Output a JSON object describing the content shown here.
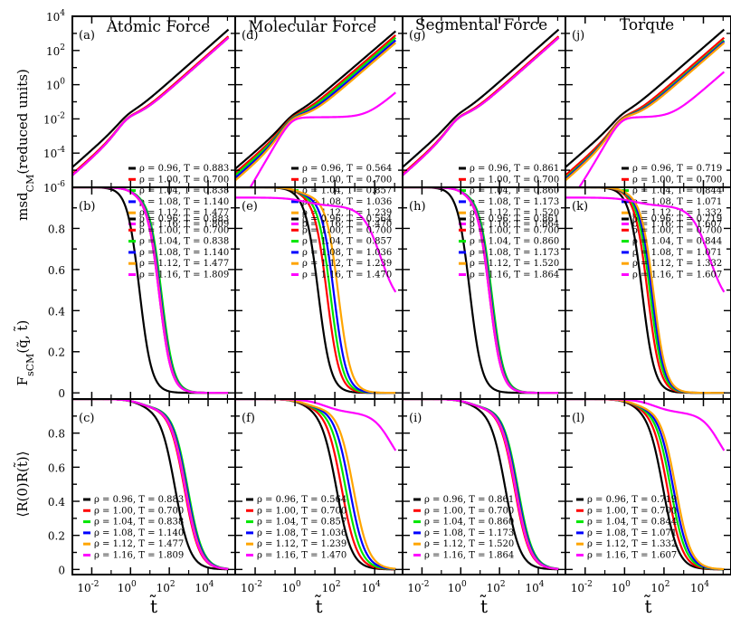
{
  "colors": {
    "frame": "#000000",
    "series": [
      "#000000",
      "#ff0000",
      "#00e600",
      "#0000ff",
      "#ffa500",
      "#ff00ff"
    ]
  },
  "columns": [
    {
      "title": "Atomic Force",
      "panels": [
        "(a)",
        "(b)",
        "(c)"
      ],
      "temperatures": [
        "0.883",
        "0.700",
        "0.838",
        "1.140",
        "1.477",
        "1.809"
      ]
    },
    {
      "title": "Molecular Force",
      "panels": [
        "(d)",
        "(e)",
        "(f)"
      ],
      "temperatures": [
        "0.564",
        "0.700",
        "0.857",
        "1.036",
        "1.239",
        "1.470"
      ]
    },
    {
      "title": "Segmental Force",
      "panels": [
        "(g)",
        "(h)",
        "(i)"
      ],
      "temperatures": [
        "0.861",
        "0.700",
        "0.860",
        "1.173",
        "1.520",
        "1.864"
      ]
    },
    {
      "title": "Torque",
      "panels": [
        "(j)",
        "(k)",
        "(l)"
      ],
      "temperatures": [
        "0.719",
        "0.700",
        "0.844",
        "1.071",
        "1.332",
        "1.607"
      ]
    }
  ],
  "densities": [
    "0.96",
    "1.00",
    "1.04",
    "1.08",
    "1.12",
    "1.16"
  ],
  "row_ylabels": [
    "msd_CM(reduced units)",
    "F_sCM(q̃, t̃)",
    "⟨R(0)R(t̃)⟩"
  ],
  "xlabel": "t̃",
  "chart_data": {
    "type": "line",
    "layout": "3x4 grid of panels",
    "x_scale": "log",
    "xlim": [
      0.001,
      200000
    ],
    "x_tick_labels": [
      "10^-2",
      "10^0",
      "10^2",
      "10^4"
    ],
    "rows": [
      {
        "quantity": "msd_CM",
        "y_scale": "log",
        "ylim": [
          1e-06,
          10000.0
        ],
        "y_tick_labels": [
          "10^-6",
          "10^-4",
          "10^-2",
          "10^0",
          "10^2",
          "10^4"
        ]
      },
      {
        "quantity": "F_sCM(q̃, t̃)",
        "y_scale": "linear",
        "ylim": [
          -0.03,
          1.0
        ],
        "y_tick_labels": [
          "0",
          "0.2",
          "0.4",
          "0.6",
          "0.8"
        ]
      },
      {
        "quantity": "⟨R(0)R(t̃)⟩",
        "y_scale": "linear",
        "ylim": [
          -0.03,
          1.0
        ],
        "y_tick_labels": [
          "0",
          "0.2",
          "0.4",
          "0.6",
          "0.8"
        ]
      }
    ],
    "series_legend_format": "ρ = {rho}, T = {T}",
    "approx_curves": {
      "msd_note": "msd curves: ballistic ~ t^2 at short times, diffusive ~ t at long times; high density (ρ = 1.16) curve plateaus near 10^-2 in molecular force and torque columns",
      "msd_long_time_value_at_t_1e5": {
        "Atomic Force": [
          1500,
          600,
          500,
          500,
          500,
          500
        ],
        "Molecular Force": [
          1200,
          700,
          500,
          350,
          250,
          0.3
        ],
        "Segmental Force": [
          1500,
          600,
          500,
          500,
          500,
          500
        ],
        "Torque": [
          1500,
          500,
          350,
          300,
          250,
          5
        ]
      },
      "Fs_half_decay_time": {
        "Atomic Force": [
          3,
          30,
          40,
          35,
          32,
          30
        ],
        "Molecular Force": [
          15,
          40,
          60,
          90,
          150,
          10000000.0
        ],
        "Segmental Force": [
          3,
          30,
          40,
          35,
          32,
          30
        ],
        "Torque": [
          8,
          15,
          20,
          25,
          30,
          10000000.0
        ]
      },
      "R_half_decay_time": {
        "Atomic Force": [
          200,
          600,
          900,
          800,
          700,
          650
        ],
        "Molecular Force": [
          120,
          220,
          350,
          550,
          850,
          100000000.0
        ],
        "Segmental Force": [
          200,
          600,
          900,
          800,
          700,
          650
        ],
        "Torque": [
          90,
          150,
          220,
          300,
          400,
          100000000.0
        ]
      }
    }
  }
}
